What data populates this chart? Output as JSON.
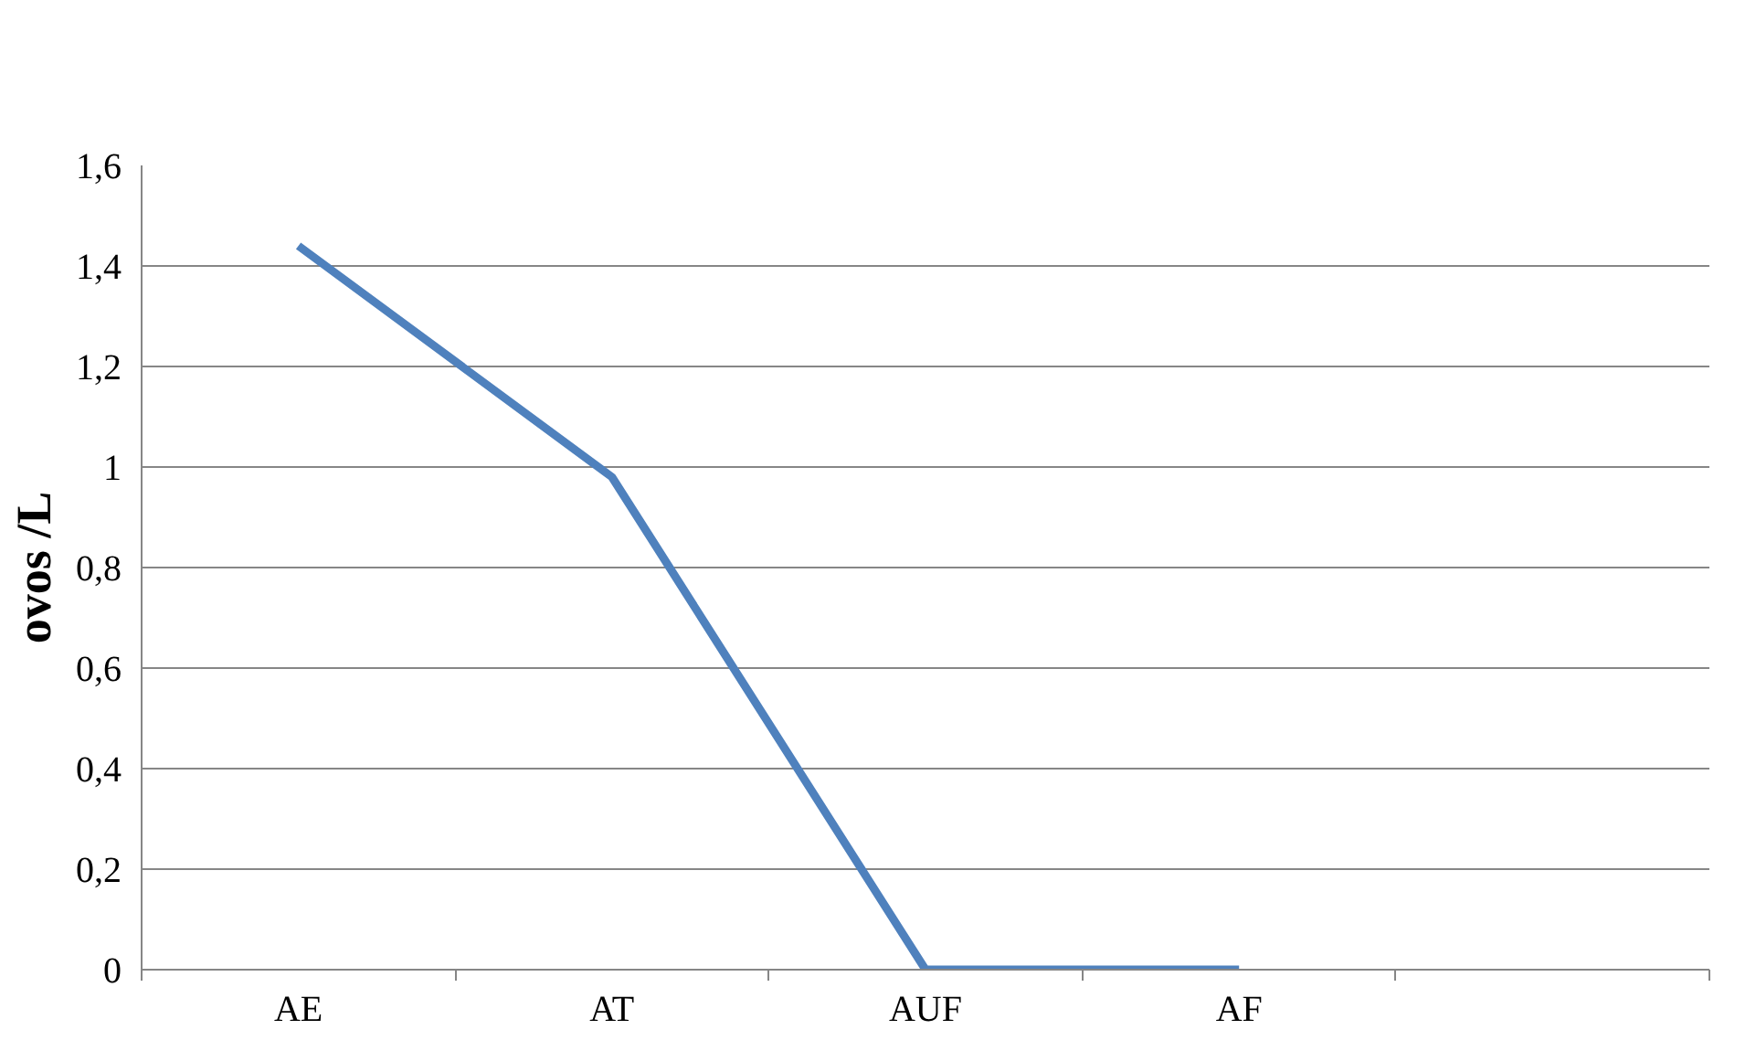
{
  "chart_data": {
    "type": "line",
    "ylabel": "ovos /L",
    "categories": [
      "AE",
      "AT",
      "AUF",
      "AF",
      null
    ],
    "series": [
      {
        "color": "#4f81bd",
        "values": [
          1.44,
          0.98,
          0,
          0,
          null
        ]
      }
    ],
    "ylim": [
      0,
      1.6
    ],
    "yticks": [
      {
        "value": 0,
        "label": "0"
      },
      {
        "value": 0.2,
        "label": "0,2"
      },
      {
        "value": 0.4,
        "label": "0,4"
      },
      {
        "value": 0.6,
        "label": "0,6"
      },
      {
        "value": 0.8,
        "label": "0,8"
      },
      {
        "value": 1,
        "label": "1"
      },
      {
        "value": 1.2,
        "label": "1,2"
      },
      {
        "value": 1.4,
        "label": "1,4"
      },
      {
        "value": 1.6,
        "label": "1,6"
      }
    ],
    "grid": "y",
    "marker": "none",
    "line_style": "solid"
  }
}
